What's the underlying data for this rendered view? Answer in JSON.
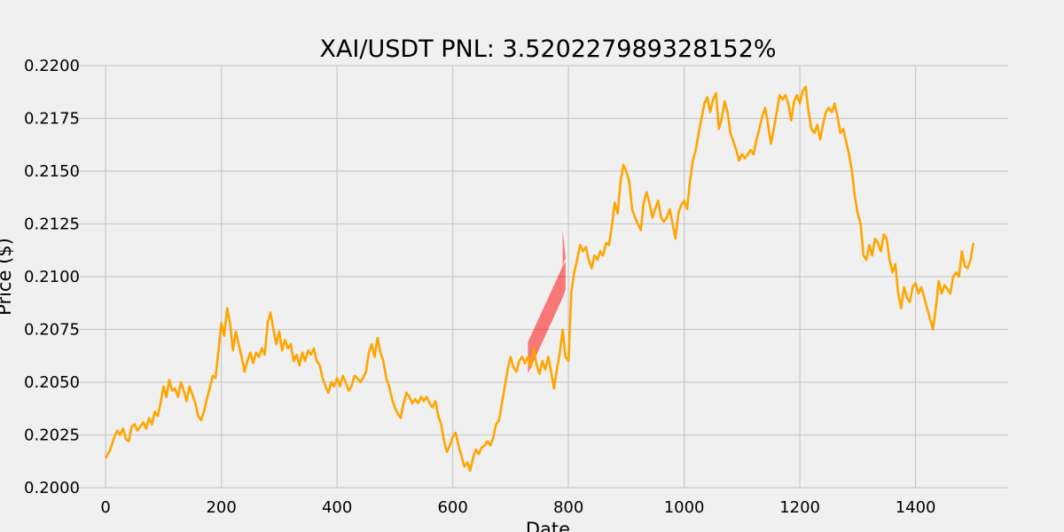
{
  "chart_data": {
    "type": "line",
    "title": "XAI/USDT  PNL: 3.520227989328152%",
    "xlabel": "Date",
    "ylabel": "Price ($)",
    "xlim": [
      -60,
      1560
    ],
    "ylim": [
      0.2,
      0.22
    ],
    "x_ticks": [
      0,
      200,
      400,
      600,
      800,
      1000,
      1200,
      1400
    ],
    "x_tick_labels": [
      "0",
      "200",
      "400",
      "600",
      "800",
      "1000",
      "1200",
      "1400"
    ],
    "y_ticks": [
      0.2,
      0.2025,
      0.205,
      0.2075,
      0.21,
      0.2125,
      0.215,
      0.2175,
      0.22
    ],
    "y_tick_labels": [
      "0.2000",
      "0.2025",
      "0.2050",
      "0.2075",
      "0.2100",
      "0.2125",
      "0.2150",
      "0.2175",
      "0.2200"
    ],
    "grid": true,
    "colors": {
      "line": "#ffa500",
      "band": "#ff0000",
      "grid": "#cbcbcb",
      "background": "#f0f0f0"
    },
    "series": [
      {
        "color": "#ffa500",
        "points": [
          [
            0,
            0.2014
          ],
          [
            8,
            0.2018
          ],
          [
            15,
            0.2024
          ],
          [
            20,
            0.2027
          ],
          [
            25,
            0.2025
          ],
          [
            30,
            0.2028
          ],
          [
            35,
            0.2023
          ],
          [
            40,
            0.2022
          ],
          [
            45,
            0.2029
          ],
          [
            50,
            0.203
          ],
          [
            55,
            0.2027
          ],
          [
            60,
            0.2029
          ],
          [
            65,
            0.2031
          ],
          [
            70,
            0.2028
          ],
          [
            75,
            0.2033
          ],
          [
            80,
            0.203
          ],
          [
            85,
            0.2036
          ],
          [
            90,
            0.2034
          ],
          [
            95,
            0.204
          ],
          [
            100,
            0.2048
          ],
          [
            105,
            0.2043
          ],
          [
            110,
            0.2051
          ],
          [
            115,
            0.2046
          ],
          [
            120,
            0.2047
          ],
          [
            125,
            0.2043
          ],
          [
            130,
            0.205
          ],
          [
            135,
            0.2046
          ],
          [
            140,
            0.2041
          ],
          [
            145,
            0.2048
          ],
          [
            150,
            0.2044
          ],
          [
            155,
            0.204
          ],
          [
            160,
            0.2034
          ],
          [
            165,
            0.2032
          ],
          [
            170,
            0.2036
          ],
          [
            175,
            0.2042
          ],
          [
            180,
            0.2047
          ],
          [
            185,
            0.2053
          ],
          [
            190,
            0.2052
          ],
          [
            195,
            0.2065
          ],
          [
            200,
            0.2078
          ],
          [
            205,
            0.2072
          ],
          [
            210,
            0.2085
          ],
          [
            215,
            0.2078
          ],
          [
            220,
            0.2065
          ],
          [
            225,
            0.2074
          ],
          [
            230,
            0.2068
          ],
          [
            235,
            0.2062
          ],
          [
            240,
            0.2055
          ],
          [
            245,
            0.206
          ],
          [
            250,
            0.2064
          ],
          [
            255,
            0.2059
          ],
          [
            260,
            0.2064
          ],
          [
            265,
            0.2062
          ],
          [
            270,
            0.2066
          ],
          [
            275,
            0.2063
          ],
          [
            280,
            0.2078
          ],
          [
            285,
            0.2083
          ],
          [
            290,
            0.2075
          ],
          [
            295,
            0.2068
          ],
          [
            300,
            0.2074
          ],
          [
            305,
            0.2065
          ],
          [
            310,
            0.207
          ],
          [
            315,
            0.2066
          ],
          [
            320,
            0.2068
          ],
          [
            325,
            0.206
          ],
          [
            330,
            0.2063
          ],
          [
            335,
            0.2058
          ],
          [
            340,
            0.2064
          ],
          [
            345,
            0.206
          ],
          [
            350,
            0.2065
          ],
          [
            355,
            0.2063
          ],
          [
            360,
            0.2066
          ],
          [
            365,
            0.206
          ],
          [
            370,
            0.2058
          ],
          [
            375,
            0.2052
          ],
          [
            380,
            0.2048
          ],
          [
            385,
            0.2045
          ],
          [
            390,
            0.205
          ],
          [
            395,
            0.2048
          ],
          [
            400,
            0.2052
          ],
          [
            405,
            0.2048
          ],
          [
            410,
            0.2053
          ],
          [
            415,
            0.205
          ],
          [
            420,
            0.2046
          ],
          [
            425,
            0.2048
          ],
          [
            430,
            0.2053
          ],
          [
            435,
            0.2052
          ],
          [
            440,
            0.205
          ],
          [
            445,
            0.2052
          ],
          [
            450,
            0.2055
          ],
          [
            455,
            0.2064
          ],
          [
            460,
            0.2068
          ],
          [
            465,
            0.2062
          ],
          [
            470,
            0.2071
          ],
          [
            475,
            0.2064
          ],
          [
            480,
            0.206
          ],
          [
            485,
            0.2052
          ],
          [
            490,
            0.2048
          ],
          [
            495,
            0.2042
          ],
          [
            500,
            0.2038
          ],
          [
            505,
            0.2035
          ],
          [
            510,
            0.2033
          ],
          [
            515,
            0.204
          ],
          [
            520,
            0.2045
          ],
          [
            525,
            0.2043
          ],
          [
            530,
            0.204
          ],
          [
            535,
            0.2042
          ],
          [
            540,
            0.204
          ],
          [
            545,
            0.2043
          ],
          [
            550,
            0.2041
          ],
          [
            555,
            0.2043
          ],
          [
            560,
            0.204
          ],
          [
            565,
            0.2038
          ],
          [
            570,
            0.2041
          ],
          [
            575,
            0.2034
          ],
          [
            580,
            0.203
          ],
          [
            585,
            0.2022
          ],
          [
            590,
            0.2017
          ],
          [
            595,
            0.202
          ],
          [
            600,
            0.2024
          ],
          [
            605,
            0.2026
          ],
          [
            610,
            0.202
          ],
          [
            615,
            0.2015
          ],
          [
            620,
            0.201
          ],
          [
            625,
            0.2012
          ],
          [
            630,
            0.2008
          ],
          [
            635,
            0.2014
          ],
          [
            640,
            0.2018
          ],
          [
            645,
            0.2016
          ],
          [
            650,
            0.2019
          ],
          [
            655,
            0.202
          ],
          [
            660,
            0.2022
          ],
          [
            665,
            0.202
          ],
          [
            670,
            0.2024
          ],
          [
            675,
            0.203
          ],
          [
            680,
            0.2032
          ],
          [
            685,
            0.204
          ],
          [
            690,
            0.2048
          ],
          [
            695,
            0.2056
          ],
          [
            700,
            0.2062
          ],
          [
            705,
            0.2057
          ],
          [
            710,
            0.2055
          ],
          [
            715,
            0.206
          ],
          [
            720,
            0.2062
          ],
          [
            725,
            0.2059
          ],
          [
            730,
            0.2062
          ],
          [
            735,
            0.2057
          ],
          [
            740,
            0.2066
          ],
          [
            745,
            0.2058
          ],
          [
            750,
            0.2054
          ],
          [
            755,
            0.206
          ],
          [
            760,
            0.2056
          ],
          [
            765,
            0.2062
          ],
          [
            770,
            0.2055
          ],
          [
            775,
            0.2047
          ],
          [
            780,
            0.2056
          ],
          [
            785,
            0.2064
          ],
          [
            790,
            0.2075
          ],
          [
            795,
            0.2062
          ],
          [
            800,
            0.206
          ],
          [
            805,
            0.2093
          ],
          [
            810,
            0.2102
          ],
          [
            815,
            0.2108
          ],
          [
            820,
            0.2115
          ],
          [
            825,
            0.2112
          ],
          [
            830,
            0.2114
          ],
          [
            835,
            0.2108
          ],
          [
            840,
            0.2104
          ],
          [
            845,
            0.211
          ],
          [
            850,
            0.2108
          ],
          [
            855,
            0.2112
          ],
          [
            860,
            0.211
          ],
          [
            865,
            0.2116
          ],
          [
            870,
            0.2115
          ],
          [
            875,
            0.2124
          ],
          [
            880,
            0.2135
          ],
          [
            885,
            0.213
          ],
          [
            890,
            0.2145
          ],
          [
            895,
            0.2153
          ],
          [
            900,
            0.215
          ],
          [
            905,
            0.2145
          ],
          [
            910,
            0.2132
          ],
          [
            915,
            0.2128
          ],
          [
            920,
            0.2125
          ],
          [
            925,
            0.2122
          ],
          [
            930,
            0.2135
          ],
          [
            935,
            0.214
          ],
          [
            940,
            0.2135
          ],
          [
            945,
            0.2128
          ],
          [
            950,
            0.2132
          ],
          [
            955,
            0.2136
          ],
          [
            960,
            0.2128
          ],
          [
            965,
            0.2126
          ],
          [
            970,
            0.2128
          ],
          [
            975,
            0.2132
          ],
          [
            980,
            0.2125
          ],
          [
            985,
            0.2118
          ],
          [
            990,
            0.213
          ],
          [
            995,
            0.2134
          ],
          [
            1000,
            0.2136
          ],
          [
            1005,
            0.2132
          ],
          [
            1010,
            0.2145
          ],
          [
            1015,
            0.2155
          ],
          [
            1020,
            0.216
          ],
          [
            1025,
            0.2168
          ],
          [
            1030,
            0.2175
          ],
          [
            1035,
            0.2182
          ],
          [
            1040,
            0.2185
          ],
          [
            1045,
            0.2178
          ],
          [
            1050,
            0.2184
          ],
          [
            1055,
            0.2187
          ],
          [
            1060,
            0.217
          ],
          [
            1065,
            0.2175
          ],
          [
            1070,
            0.2183
          ],
          [
            1075,
            0.2178
          ],
          [
            1080,
            0.2168
          ],
          [
            1085,
            0.2164
          ],
          [
            1090,
            0.216
          ],
          [
            1095,
            0.2155
          ],
          [
            1100,
            0.2158
          ],
          [
            1105,
            0.2156
          ],
          [
            1110,
            0.2158
          ],
          [
            1115,
            0.216
          ],
          [
            1120,
            0.2158
          ],
          [
            1125,
            0.2165
          ],
          [
            1130,
            0.217
          ],
          [
            1135,
            0.2176
          ],
          [
            1140,
            0.218
          ],
          [
            1145,
            0.2172
          ],
          [
            1150,
            0.2163
          ],
          [
            1155,
            0.217
          ],
          [
            1160,
            0.2178
          ],
          [
            1165,
            0.2186
          ],
          [
            1170,
            0.2184
          ],
          [
            1175,
            0.2186
          ],
          [
            1180,
            0.2182
          ],
          [
            1185,
            0.2174
          ],
          [
            1190,
            0.2183
          ],
          [
            1195,
            0.2186
          ],
          [
            1200,
            0.2182
          ],
          [
            1205,
            0.2188
          ],
          [
            1210,
            0.219
          ],
          [
            1215,
            0.2178
          ],
          [
            1220,
            0.217
          ],
          [
            1225,
            0.2168
          ],
          [
            1230,
            0.2172
          ],
          [
            1235,
            0.2165
          ],
          [
            1240,
            0.2172
          ],
          [
            1245,
            0.2178
          ],
          [
            1250,
            0.218
          ],
          [
            1255,
            0.2178
          ],
          [
            1260,
            0.2182
          ],
          [
            1265,
            0.2176
          ],
          [
            1270,
            0.2168
          ],
          [
            1275,
            0.217
          ],
          [
            1280,
            0.2164
          ],
          [
            1285,
            0.2158
          ],
          [
            1290,
            0.215
          ],
          [
            1295,
            0.2138
          ],
          [
            1300,
            0.213
          ],
          [
            1305,
            0.2125
          ],
          [
            1310,
            0.211
          ],
          [
            1315,
            0.2108
          ],
          [
            1320,
            0.2115
          ],
          [
            1325,
            0.211
          ],
          [
            1330,
            0.2118
          ],
          [
            1335,
            0.2116
          ],
          [
            1340,
            0.2112
          ],
          [
            1345,
            0.212
          ],
          [
            1350,
            0.2118
          ],
          [
            1355,
            0.2108
          ],
          [
            1360,
            0.2102
          ],
          [
            1365,
            0.2106
          ],
          [
            1370,
            0.2092
          ],
          [
            1375,
            0.2085
          ],
          [
            1380,
            0.2095
          ],
          [
            1385,
            0.209
          ],
          [
            1390,
            0.2088
          ],
          [
            1395,
            0.2095
          ],
          [
            1400,
            0.2097
          ],
          [
            1405,
            0.2092
          ],
          [
            1410,
            0.2095
          ],
          [
            1415,
            0.209
          ],
          [
            1420,
            0.2085
          ],
          [
            1425,
            0.208
          ],
          [
            1430,
            0.2075
          ],
          [
            1435,
            0.2085
          ],
          [
            1440,
            0.2098
          ],
          [
            1445,
            0.2092
          ],
          [
            1450,
            0.2096
          ],
          [
            1455,
            0.2094
          ],
          [
            1460,
            0.2092
          ],
          [
            1465,
            0.21
          ],
          [
            1470,
            0.2102
          ],
          [
            1475,
            0.21
          ],
          [
            1480,
            0.2112
          ],
          [
            1485,
            0.2105
          ],
          [
            1490,
            0.2104
          ],
          [
            1495,
            0.2108
          ],
          [
            1500,
            0.2116
          ]
        ]
      }
    ],
    "band": {
      "color": "#ff0000",
      "opacity": 0.5,
      "x": [
        730,
        790,
        795
      ],
      "upper": [
        0.2069,
        0.2105,
        0.2107
      ],
      "lower": [
        0.2054,
        0.209,
        0.2094
      ],
      "edge": {
        "x": 790,
        "from": 0.2105,
        "to": 0.2122
      }
    }
  }
}
